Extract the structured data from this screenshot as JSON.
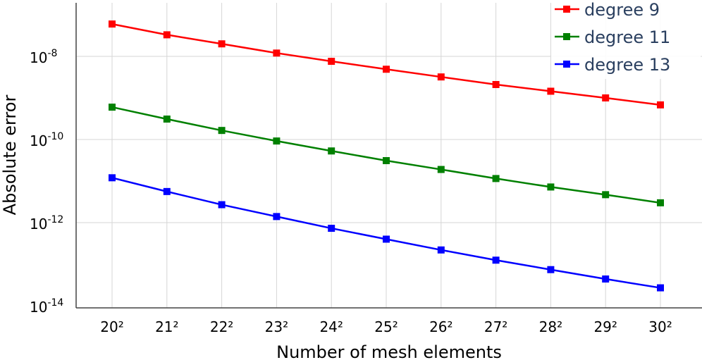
{
  "chart_data": {
    "type": "line",
    "title": "",
    "xlabel": "Number of mesh elements",
    "ylabel": "Absolute error",
    "categories": [
      "20²",
      "21²",
      "22²",
      "23²",
      "24²",
      "25²",
      "26²",
      "27²",
      "28²",
      "29²",
      "30²"
    ],
    "yscale": "log",
    "ylim": [
      1e-14,
      4e-07
    ],
    "ytick_labels": [
      {
        "value": 1e-08,
        "base": "10",
        "exp": "-8"
      },
      {
        "value": 1e-10,
        "base": "10",
        "exp": "-10"
      },
      {
        "value": 1e-12,
        "base": "10",
        "exp": "-12"
      },
      {
        "value": 1e-14,
        "base": "10",
        "exp": "-14"
      }
    ],
    "grid": true,
    "legend_position": "top-right",
    "series": [
      {
        "name": "degree 9",
        "color": "#ff0000",
        "values": [
          6e-08,
          3.3e-08,
          2e-08,
          1.2e-08,
          7.6e-09,
          4.9e-09,
          3.2e-09,
          2.1e-09,
          1.45e-09,
          1e-09,
          6.8e-10
        ]
      },
      {
        "name": "degree 11",
        "color": "#008000",
        "values": [
          6e-10,
          3.1e-10,
          1.65e-10,
          9.2e-11,
          5.3e-11,
          3.1e-11,
          1.9e-11,
          1.15e-11,
          7.2e-12,
          4.7e-12,
          3e-12
        ]
      },
      {
        "name": "degree 13",
        "color": "#0000ff",
        "values": [
          1.2e-11,
          5.6e-12,
          2.7e-12,
          1.4e-12,
          7.3e-13,
          4e-13,
          2.2e-13,
          1.25e-13,
          7.4e-14,
          4.4e-14,
          2.7e-14
        ]
      }
    ]
  }
}
